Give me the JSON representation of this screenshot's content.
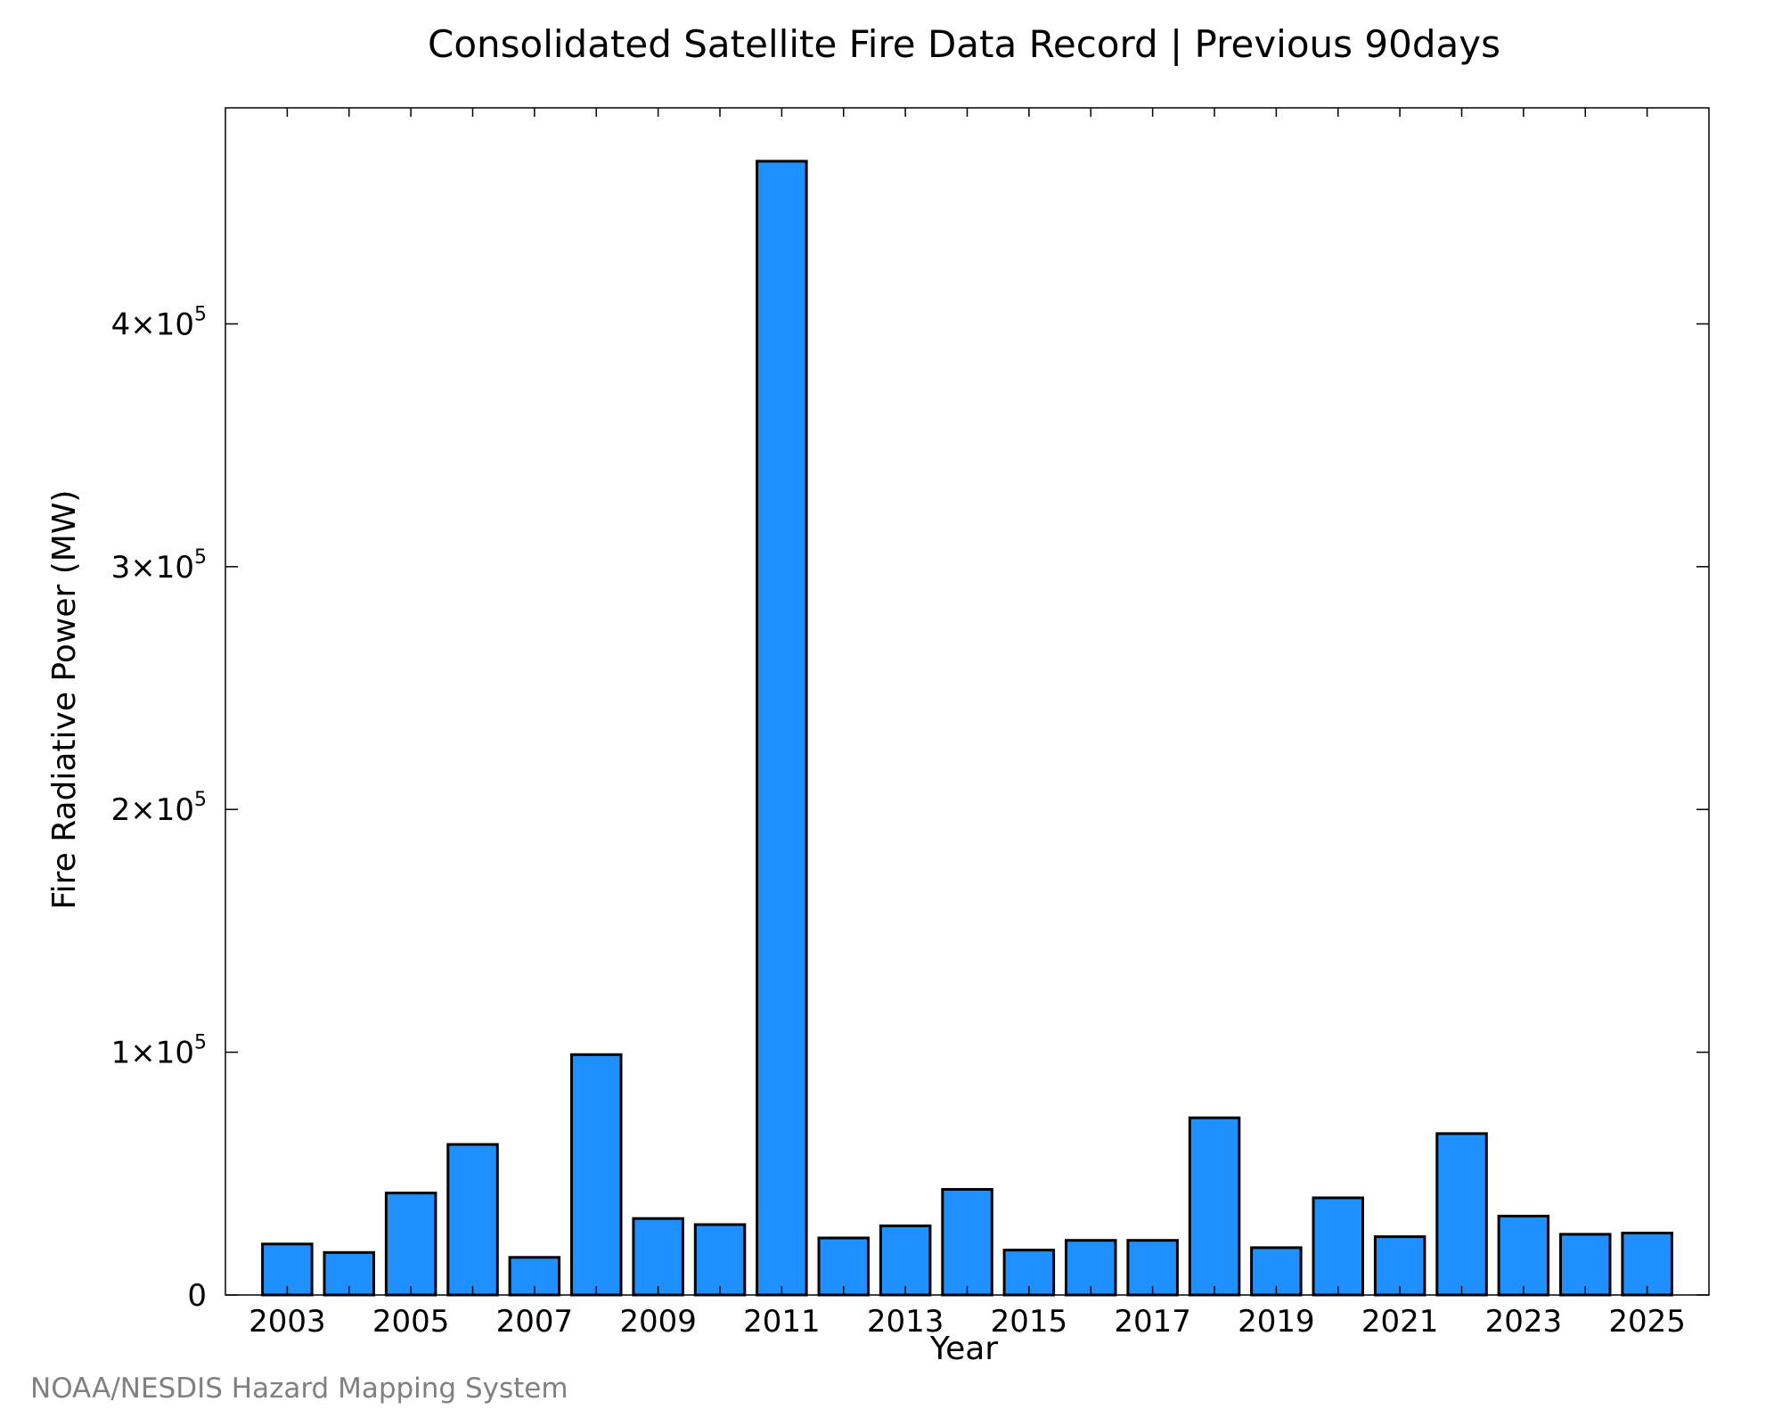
{
  "chart_data": {
    "type": "bar",
    "title": "Consolidated Satellite Fire Data Record | Previous 90days",
    "xlabel": "Year",
    "ylabel": "Fire Radiative Power (MW)",
    "x": [
      2003,
      2004,
      2005,
      2006,
      2007,
      2008,
      2009,
      2010,
      2011,
      2012,
      2013,
      2014,
      2015,
      2016,
      2017,
      2018,
      2019,
      2020,
      2021,
      2022,
      2023,
      2024,
      2025
    ],
    "values": [
      21000,
      17500,
      42000,
      62000,
      15500,
      99000,
      31500,
      29000,
      467000,
      23500,
      28500,
      43500,
      18500,
      22500,
      22500,
      73000,
      19500,
      40000,
      24000,
      66500,
      32500,
      25000,
      25500
    ],
    "xlim": [
      2002,
      2026
    ],
    "ylim": [
      0,
      489000
    ],
    "x_ticks": [
      {
        "value": 2003,
        "label": "2003"
      },
      {
        "value": 2005,
        "label": "2005"
      },
      {
        "value": 2007,
        "label": "2007"
      },
      {
        "value": 2009,
        "label": "2009"
      },
      {
        "value": 2011,
        "label": "2011"
      },
      {
        "value": 2013,
        "label": "2013"
      },
      {
        "value": 2015,
        "label": "2015"
      },
      {
        "value": 2017,
        "label": "2017"
      },
      {
        "value": 2019,
        "label": "2019"
      },
      {
        "value": 2021,
        "label": "2021"
      },
      {
        "value": 2023,
        "label": "2023"
      },
      {
        "value": 2025,
        "label": "2025"
      }
    ],
    "y_ticks": [
      {
        "value": 0,
        "mantissa": "0",
        "exponent": ""
      },
      {
        "value": 100000,
        "mantissa": "1×10",
        "exponent": "5"
      },
      {
        "value": 200000,
        "mantissa": "2×10",
        "exponent": "5"
      },
      {
        "value": 300000,
        "mantissa": "3×10",
        "exponent": "5"
      },
      {
        "value": 400000,
        "mantissa": "4×10",
        "exponent": "5"
      }
    ],
    "grid": false,
    "legend": "none",
    "bar_color": "#1e90ff",
    "edge_color": "#000000"
  },
  "credit": "NOAA/NESDIS Hazard Mapping System"
}
